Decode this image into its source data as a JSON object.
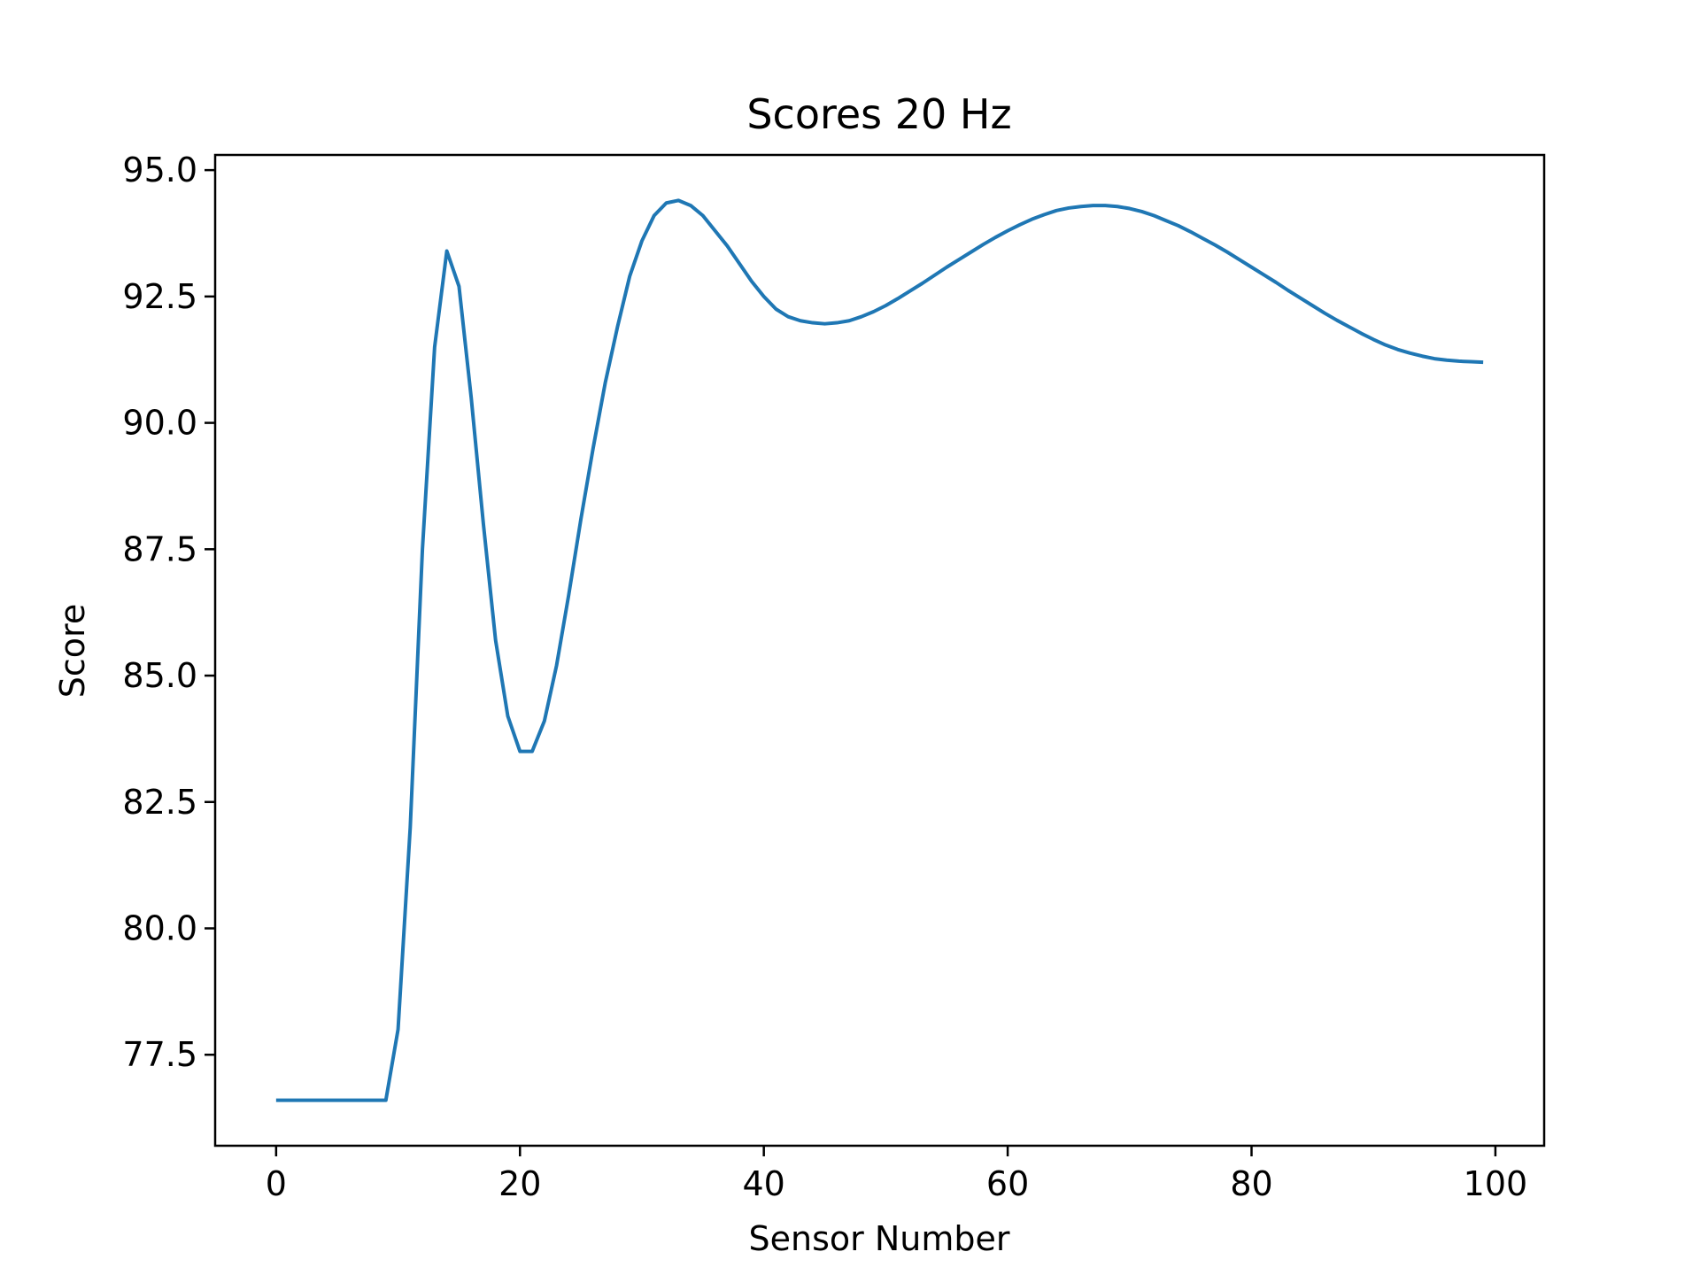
{
  "chart_data": {
    "type": "line",
    "title": "Scores 20 Hz",
    "xlabel": "Sensor Number",
    "ylabel": "Score",
    "xlim": [
      -5,
      104
    ],
    "ylim": [
      75.7,
      95.3
    ],
    "xticks": [
      0,
      20,
      40,
      60,
      80,
      100
    ],
    "xtick_labels": [
      "0",
      "20",
      "40",
      "60",
      "80",
      "100"
    ],
    "yticks": [
      77.5,
      80.0,
      82.5,
      85.0,
      87.5,
      90.0,
      92.5,
      95.0
    ],
    "ytick_labels": [
      "77.5",
      "80.0",
      "82.5",
      "85.0",
      "87.5",
      "90.0",
      "92.5",
      "95.0"
    ],
    "grid": false,
    "line_color": "#1f77b4",
    "series": [
      {
        "x": [
          0,
          1,
          2,
          3,
          4,
          5,
          6,
          7,
          8,
          9,
          10,
          11,
          12,
          13,
          14,
          15,
          16,
          17,
          18,
          19,
          20,
          21,
          22,
          23,
          24,
          25,
          26,
          27,
          28,
          29,
          30,
          31,
          32,
          33,
          34,
          35,
          36,
          37,
          38,
          39,
          40,
          41,
          42,
          43,
          44,
          45,
          46,
          47,
          48,
          49,
          50,
          51,
          52,
          53,
          54,
          55,
          56,
          57,
          58,
          59,
          60,
          61,
          62,
          63,
          64,
          65,
          66,
          67,
          68,
          69,
          70,
          71,
          72,
          73,
          74,
          75,
          76,
          77,
          78,
          79,
          80,
          81,
          82,
          83,
          84,
          85,
          86,
          87,
          88,
          89,
          90,
          91,
          92,
          93,
          94,
          95,
          96,
          97,
          98,
          99
        ],
        "values": [
          76.6,
          76.6,
          76.6,
          76.6,
          76.6,
          76.6,
          76.6,
          76.6,
          76.6,
          76.6,
          78.0,
          82.0,
          87.5,
          91.5,
          93.4,
          92.7,
          90.5,
          88.0,
          85.7,
          84.2,
          83.5,
          83.5,
          84.1,
          85.2,
          86.6,
          88.1,
          89.5,
          90.8,
          91.9,
          92.9,
          93.6,
          94.1,
          94.35,
          94.4,
          94.3,
          94.1,
          93.8,
          93.5,
          93.15,
          92.8,
          92.5,
          92.25,
          92.1,
          92.02,
          91.98,
          91.96,
          91.98,
          92.02,
          92.1,
          92.2,
          92.32,
          92.46,
          92.61,
          92.76,
          92.92,
          93.08,
          93.23,
          93.38,
          93.53,
          93.67,
          93.8,
          93.92,
          94.03,
          94.12,
          94.2,
          94.25,
          94.28,
          94.3,
          94.3,
          94.28,
          94.24,
          94.18,
          94.1,
          94.0,
          93.9,
          93.78,
          93.65,
          93.52,
          93.38,
          93.23,
          93.08,
          92.93,
          92.78,
          92.62,
          92.47,
          92.32,
          92.17,
          92.03,
          91.9,
          91.77,
          91.65,
          91.54,
          91.45,
          91.38,
          91.32,
          91.27,
          91.24,
          91.22,
          91.21,
          91.2
        ]
      }
    ]
  }
}
